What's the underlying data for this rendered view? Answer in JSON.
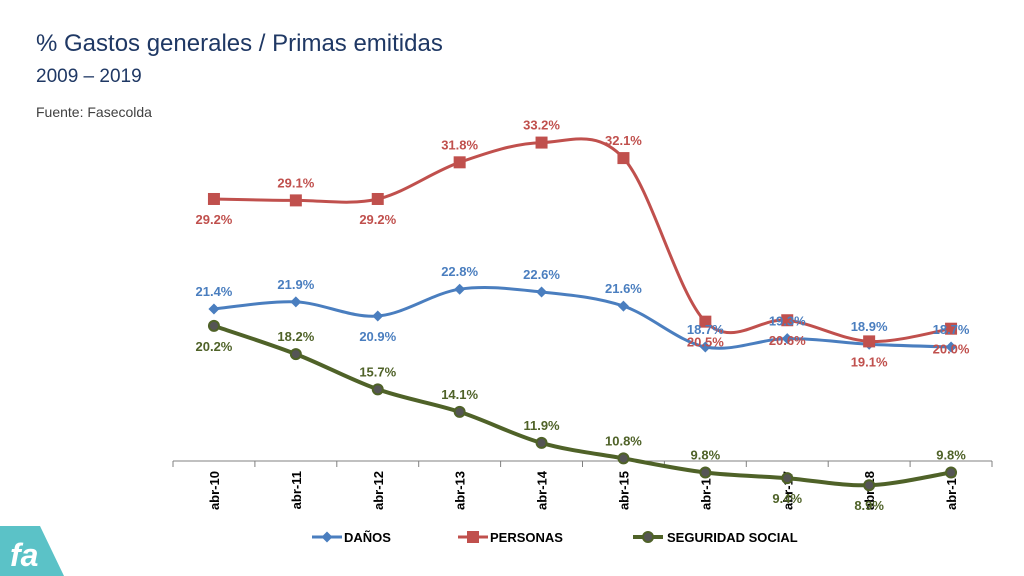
{
  "header": {
    "title": "% Gastos generales / Primas emitidas",
    "subtitle": "2009 – 2019",
    "source": "Fuente: Fasecolda"
  },
  "logo": {
    "text": "fa"
  },
  "colors": {
    "danos": "#4a7ebf",
    "personas": "#c0504d",
    "seguridad": "#4f6228",
    "title": "#1f3864"
  },
  "chart_data": {
    "type": "line",
    "title": "% Gastos generales / Primas emitidas",
    "subtitle": "2009 – 2019",
    "categories": [
      "abr-10",
      "abr-11",
      "abr-12",
      "abr-13",
      "abr-14",
      "abr-15",
      "abr-16",
      "abr-17",
      "abr-18",
      "abr-19"
    ],
    "ylim": [
      0,
      36
    ],
    "grid": false,
    "legend_position": "bottom",
    "series": [
      {
        "name": "DAÑOS",
        "marker": "diamond",
        "values": [
          21.4,
          21.9,
          20.9,
          22.8,
          22.6,
          21.6,
          18.7,
          19.3,
          18.9,
          18.7
        ],
        "labels": [
          "21.4%",
          "21.9%",
          "20.9%",
          "22.8%",
          "22.6%",
          "21.6%",
          "18.7%",
          "19.3%",
          "18.9%",
          "18.7%"
        ]
      },
      {
        "name": "PERSONAS",
        "marker": "square",
        "values": [
          29.2,
          29.1,
          29.2,
          31.8,
          33.2,
          32.1,
          20.5,
          20.6,
          19.1,
          20.0
        ],
        "labels": [
          "29.2%",
          "29.1%",
          "29.2%",
          "31.8%",
          "33.2%",
          "32.1%",
          "20.5%",
          "20.6%",
          "19.1%",
          "20.0%"
        ]
      },
      {
        "name": "SEGURIDAD SOCIAL",
        "marker": "circle",
        "values": [
          20.2,
          18.2,
          15.7,
          14.1,
          11.9,
          10.8,
          9.8,
          9.4,
          8.9,
          9.8
        ],
        "labels": [
          "20.2%",
          "18.2%",
          "15.7%",
          "14.1%",
          "11.9%",
          "10.8%",
          "9.8%",
          "9.4%",
          "8.9%",
          "9.8%"
        ]
      }
    ]
  }
}
